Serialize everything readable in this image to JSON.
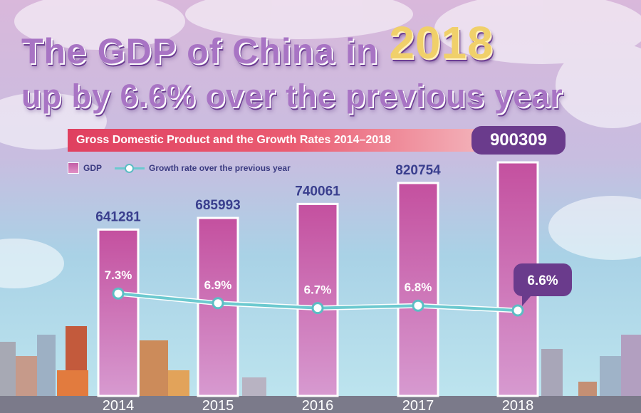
{
  "title": {
    "line1_prefix": "The GDP of China in",
    "line1_year": "2018",
    "line2": "up by 6.6% over the previous year"
  },
  "banner": {
    "text": "Gross Domestic Product and the Growth Rates 2014–2018"
  },
  "legend": {
    "gdp": "GDP",
    "growth": "Growth rate over the previous year"
  },
  "colors": {
    "bar_top": "#c4509f",
    "bar_bottom": "#d79ad0",
    "line": "#6cc9cf",
    "value_text": "#3a3f8e",
    "badge": "#6a3b8c",
    "axis_band": "#7b7a8a"
  },
  "chart_data": {
    "type": "bar",
    "title": "Gross Domestic Product and the Growth Rates 2014–2018",
    "categories": [
      "2014",
      "2015",
      "2016",
      "2017",
      "2018"
    ],
    "series": [
      {
        "name": "GDP",
        "type": "bar",
        "values": [
          641281,
          685993,
          740061,
          820754,
          900309
        ]
      },
      {
        "name": "Growth rate over the previous year",
        "type": "line",
        "unit": "%",
        "values": [
          7.3,
          6.9,
          6.7,
          6.8,
          6.6
        ]
      }
    ],
    "value_labels": [
      "641281",
      "685993",
      "740061",
      "820754",
      "900309"
    ],
    "rate_labels": [
      "7.3%",
      "6.9%",
      "6.7%",
      "6.8%",
      "6.6%"
    ],
    "xlabel": "",
    "ylabel": "",
    "legend_position": "top-left",
    "grid": false
  }
}
